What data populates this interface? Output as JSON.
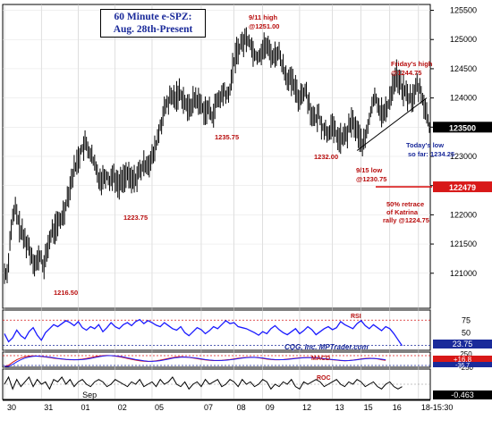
{
  "chart_data": [
    {
      "panel": "price",
      "type": "candlestick",
      "title": "60 Minute e-SPZ:",
      "subtitle": "Aug. 28th-Present",
      "ylim": [
        1204,
        1256
      ],
      "yticks": [
        "121000",
        "121500",
        "122000",
        "122500",
        "123000",
        "123500",
        "124000",
        "124500",
        "125000",
        "125500"
      ],
      "ytick_values": [
        1210,
        1215,
        1220,
        1225,
        1230,
        1235,
        1240,
        1245,
        1250,
        1255
      ],
      "last_price": {
        "value": 1235.0,
        "label": "123500"
      },
      "retrace_level": {
        "value": 1224.79,
        "label": "122479"
      },
      "annotations": [
        {
          "text": "1216.50",
          "value": 1216.5,
          "t": 11
        },
        {
          "text": "1223.75",
          "value": 1223.75,
          "t": 27
        },
        {
          "text": "1235.75",
          "value": 1235.75,
          "t": 49
        },
        {
          "text": "9/11 high",
          "value": 1251.0,
          "t": 59
        },
        {
          "text": "@1251.00",
          "value": 1251.0,
          "t": 59
        },
        {
          "text": "1232.00",
          "value": 1232.0,
          "t": 82
        },
        {
          "text": "9/15 low",
          "value": 1230.75,
          "t": 86
        },
        {
          "text": "@1230.75",
          "value": 1230.75,
          "t": 86
        },
        {
          "text": "Friday's high",
          "value": 1244.75,
          "t": 95
        },
        {
          "text": "@1244.75",
          "value": 1244.75,
          "t": 95
        },
        {
          "text": "Today's low",
          "value": 1234.25,
          "t": 103
        },
        {
          "text": "so far: 1234.25",
          "value": 1234.25,
          "t": 103
        },
        {
          "text": "50% retrace",
          "value": 1224.75,
          "t": 97
        },
        {
          "text": "of Katrina",
          "value": 1224.75,
          "t": 97
        },
        {
          "text": "rally @1224.75",
          "value": 1224.75,
          "t": 97
        }
      ],
      "close_path": [
        [
          0,
          1210
        ],
        [
          1,
          1218
        ],
        [
          2,
          1221
        ],
        [
          3,
          1218
        ],
        [
          4,
          1216
        ],
        [
          5,
          1215
        ],
        [
          6,
          1213
        ],
        [
          7,
          1211.5
        ],
        [
          8,
          1213
        ],
        [
          9,
          1211
        ],
        [
          10,
          1215
        ],
        [
          11,
          1217
        ],
        [
          12,
          1218
        ],
        [
          13,
          1219
        ],
        [
          14,
          1221
        ],
        [
          15,
          1224
        ],
        [
          16,
          1227
        ],
        [
          17,
          1229
        ],
        [
          18,
          1231
        ],
        [
          19,
          1232
        ],
        [
          20,
          1231
        ],
        [
          21,
          1229
        ],
        [
          22,
          1227
        ],
        [
          23,
          1226
        ],
        [
          24,
          1227
        ],
        [
          25,
          1226
        ],
        [
          26,
          1227
        ],
        [
          27,
          1225
        ],
        [
          28,
          1226
        ],
        [
          29,
          1227
        ],
        [
          30,
          1226
        ],
        [
          31,
          1226
        ],
        [
          32,
          1227
        ],
        [
          33,
          1228
        ],
        [
          34,
          1229
        ],
        [
          35,
          1229
        ],
        [
          36,
          1231
        ],
        [
          37,
          1234
        ],
        [
          38,
          1237
        ],
        [
          39,
          1239
        ],
        [
          40,
          1240
        ],
        [
          41,
          1240
        ],
        [
          42,
          1241
        ],
        [
          43,
          1240
        ],
        [
          44,
          1238
        ],
        [
          45,
          1239
        ],
        [
          46,
          1240
        ],
        [
          47,
          1239
        ],
        [
          48,
          1238
        ],
        [
          49,
          1238
        ],
        [
          50,
          1237
        ],
        [
          51,
          1239
        ],
        [
          52,
          1240
        ],
        [
          53,
          1241
        ],
        [
          54,
          1240
        ],
        [
          55,
          1245
        ],
        [
          56,
          1248
        ],
        [
          57,
          1249
        ],
        [
          58,
          1250
        ],
        [
          59,
          1250
        ],
        [
          60,
          1248
        ],
        [
          61,
          1247
        ],
        [
          62,
          1248
        ],
        [
          63,
          1249
        ],
        [
          64,
          1248
        ],
        [
          65,
          1247
        ],
        [
          66,
          1248
        ],
        [
          67,
          1246
        ],
        [
          68,
          1244
        ],
        [
          69,
          1243
        ],
        [
          70,
          1242
        ],
        [
          71,
          1240
        ],
        [
          72,
          1241
        ],
        [
          73,
          1241
        ],
        [
          74,
          1238
        ],
        [
          75,
          1236
        ],
        [
          76,
          1237
        ],
        [
          77,
          1235
        ],
        [
          78,
          1234
        ],
        [
          79,
          1235
        ],
        [
          80,
          1234
        ],
        [
          81,
          1233
        ],
        [
          82,
          1233
        ],
        [
          83,
          1234
        ],
        [
          84,
          1236
        ],
        [
          85,
          1235
        ],
        [
          86,
          1233
        ],
        [
          87,
          1232
        ],
        [
          88,
          1235
        ],
        [
          89,
          1239
        ],
        [
          90,
          1240
        ],
        [
          91,
          1238
        ],
        [
          92,
          1237
        ],
        [
          93,
          1239
        ],
        [
          94,
          1242
        ],
        [
          95,
          1244
        ],
        [
          96,
          1242
        ],
        [
          97,
          1241
        ],
        [
          98,
          1240
        ],
        [
          99,
          1240
        ],
        [
          100,
          1242
        ],
        [
          101,
          1241
        ],
        [
          102,
          1238
        ],
        [
          103,
          1235
        ]
      ],
      "trendline": [
        [
          86,
          1231
        ],
        [
          103,
          1240
        ]
      ],
      "date_labels": [
        {
          "text": "30",
          "t": 0
        },
        {
          "text": "31",
          "t": 9
        },
        {
          "text": "01",
          "t": 18
        },
        {
          "text": "02",
          "t": 27
        },
        {
          "text": "05",
          "t": 36
        },
        {
          "text": "07",
          "t": 48
        },
        {
          "text": "08",
          "t": 56
        },
        {
          "text": "09",
          "t": 63
        },
        {
          "text": "12",
          "t": 72
        },
        {
          "text": "13",
          "t": 80
        },
        {
          "text": "15",
          "t": 87
        },
        {
          "text": "16",
          "t": 94
        },
        {
          "text": "18-15:30",
          "t": 101
        }
      ],
      "month_label": {
        "text": "Sep",
        "t": 19
      }
    },
    {
      "panel": "rsi",
      "type": "line",
      "label": "RSI",
      "ylim": [
        15,
        95
      ],
      "yticks": [
        "75",
        "50",
        "25"
      ],
      "ytick_values": [
        75,
        50,
        25
      ],
      "last_value": "23.75",
      "values": [
        48,
        32,
        40,
        55,
        44,
        38,
        52,
        60,
        45,
        35,
        50,
        58,
        66,
        62,
        68,
        74,
        70,
        64,
        72,
        60,
        55,
        62,
        58,
        66,
        52,
        60,
        70,
        62,
        58,
        66,
        70,
        64,
        72,
        76,
        68,
        74,
        70,
        65,
        62,
        70,
        64,
        58,
        55,
        62,
        50,
        44,
        52,
        60,
        56,
        48,
        54,
        62,
        58,
        66,
        74,
        68,
        70,
        62,
        60,
        58,
        54,
        50,
        45,
        52,
        48,
        58,
        64,
        56,
        50,
        46,
        52,
        58,
        48,
        54,
        62,
        56,
        46,
        52,
        58,
        62,
        56,
        60,
        72,
        66,
        62,
        58,
        68,
        74,
        64,
        58,
        66,
        60,
        54,
        62,
        58,
        48,
        36,
        24
      ],
      "credit": "CQG, Inc. MPTrader.com"
    },
    {
      "panel": "macd",
      "type": "line",
      "label": "MACD",
      "ylim": [
        -420,
        420
      ],
      "yticks": [
        "250",
        "0",
        "-250"
      ],
      "ytick_values": [
        250,
        0,
        -250
      ],
      "last_values": [
        "+16.8",
        "-36.7"
      ],
      "series": [
        {
          "values": [
            -380,
            -200,
            -60,
            60,
            140,
            200,
            230,
            240,
            230,
            210,
            190,
            160,
            130,
            110,
            90,
            70,
            60,
            60,
            70,
            90,
            120,
            160,
            200,
            230,
            250,
            260,
            250,
            230,
            200,
            160,
            120,
            80,
            40,
            10,
            -10,
            -20,
            -10,
            10,
            40,
            80,
            120,
            160,
            190,
            200,
            190,
            170,
            140,
            110,
            80,
            50,
            30,
            20,
            20,
            30,
            50,
            70,
            100,
            130,
            150,
            170,
            180,
            170,
            150,
            120,
            90,
            70,
            60,
            60,
            70,
            90,
            110,
            130,
            150,
            160,
            170,
            160,
            140,
            120,
            100,
            80,
            60,
            40,
            20,
            10,
            20,
            40,
            70,
            100,
            120,
            130,
            120,
            100,
            60,
            30
          ]
        },
        {
          "values": [
            -420,
            -300,
            -160,
            -40,
            60,
            140,
            190,
            220,
            230,
            220,
            200,
            180,
            150,
            120,
            100,
            80,
            70,
            60,
            60,
            70,
            90,
            120,
            160,
            200,
            230,
            250,
            250,
            240,
            220,
            190,
            150,
            110,
            70,
            40,
            10,
            -10,
            -15,
            -5,
            15,
            50,
            90,
            130,
            160,
            180,
            185,
            175,
            155,
            130,
            100,
            70,
            45,
            30,
            25,
            25,
            35,
            55,
            80,
            110,
            135,
            155,
            170,
            172,
            160,
            140,
            110,
            85,
            70,
            62,
            64,
            75,
            95,
            115,
            135,
            150,
            160,
            160,
            150,
            130,
            110,
            90,
            70,
            50,
            30,
            18,
            20,
            35,
            60,
            85,
            105,
            118,
            120,
            108,
            85,
            60
          ]
        }
      ]
    },
    {
      "panel": "roc",
      "type": "line",
      "label": "ROC",
      "ylim": [
        -6,
        6
      ],
      "last_value": "-0.463",
      "values": [
        0,
        3,
        -2,
        2,
        -1,
        1,
        3,
        -1,
        2,
        0,
        1,
        -2,
        2,
        1,
        3,
        0,
        2,
        -1,
        1,
        2,
        0,
        -1,
        1,
        2,
        1,
        -1,
        0,
        2,
        1,
        0,
        -1,
        1,
        0,
        2,
        -1,
        0,
        1,
        -1,
        2,
        0,
        1,
        3,
        0,
        -1,
        1,
        -2,
        0,
        1,
        -1,
        2,
        0,
        1,
        2,
        -1,
        0,
        2,
        1,
        -1,
        2,
        0,
        1,
        -1,
        0,
        2,
        1,
        -2,
        0,
        -1,
        1,
        0,
        2,
        -1,
        -2,
        1,
        0,
        1,
        2,
        1,
        -1,
        0,
        1,
        2,
        0,
        -1,
        1,
        0,
        2,
        1,
        -1,
        0,
        1,
        -1,
        -2,
        0,
        1,
        -1,
        -2,
        -1
      ]
    }
  ]
}
